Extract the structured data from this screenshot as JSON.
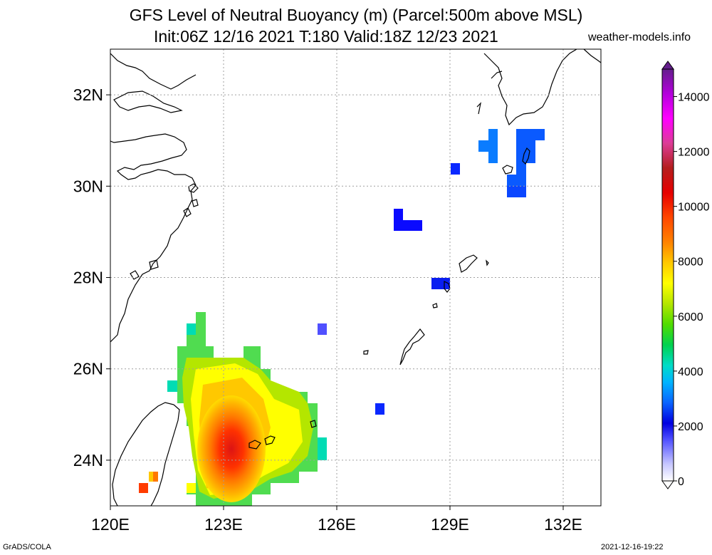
{
  "title": {
    "line1": "GFS Level of Neutral Buoyancy (m) (Parcel:500m above MSL)",
    "line2": "Init:06Z 12/16 2021 T:180 Valid:18Z 12/23 2021"
  },
  "site_label": "weather-models.info",
  "footer": {
    "left": "GrADS/COLA",
    "right": "2021-12-16-19:22"
  },
  "map": {
    "lon_range": [
      120,
      133
    ],
    "lat_range": [
      23,
      33
    ],
    "lat_ticks": [
      {
        "value": 24,
        "label": "24N"
      },
      {
        "value": 26,
        "label": "26N"
      },
      {
        "value": 28,
        "label": "28N"
      },
      {
        "value": 30,
        "label": "30N"
      },
      {
        "value": 32,
        "label": "32N"
      }
    ],
    "lon_ticks": [
      {
        "value": 120,
        "label": "120E"
      },
      {
        "value": 123,
        "label": "123E"
      },
      {
        "value": 126,
        "label": "126E"
      },
      {
        "value": 129,
        "label": "129E"
      },
      {
        "value": 132,
        "label": "132E"
      }
    ],
    "grid": "dotted"
  },
  "colorbar": {
    "unit": "m",
    "labels": [
      "0",
      "2000",
      "4000",
      "6000",
      "8000",
      "10000",
      "12000",
      "14000"
    ],
    "max": 15000
  }
}
